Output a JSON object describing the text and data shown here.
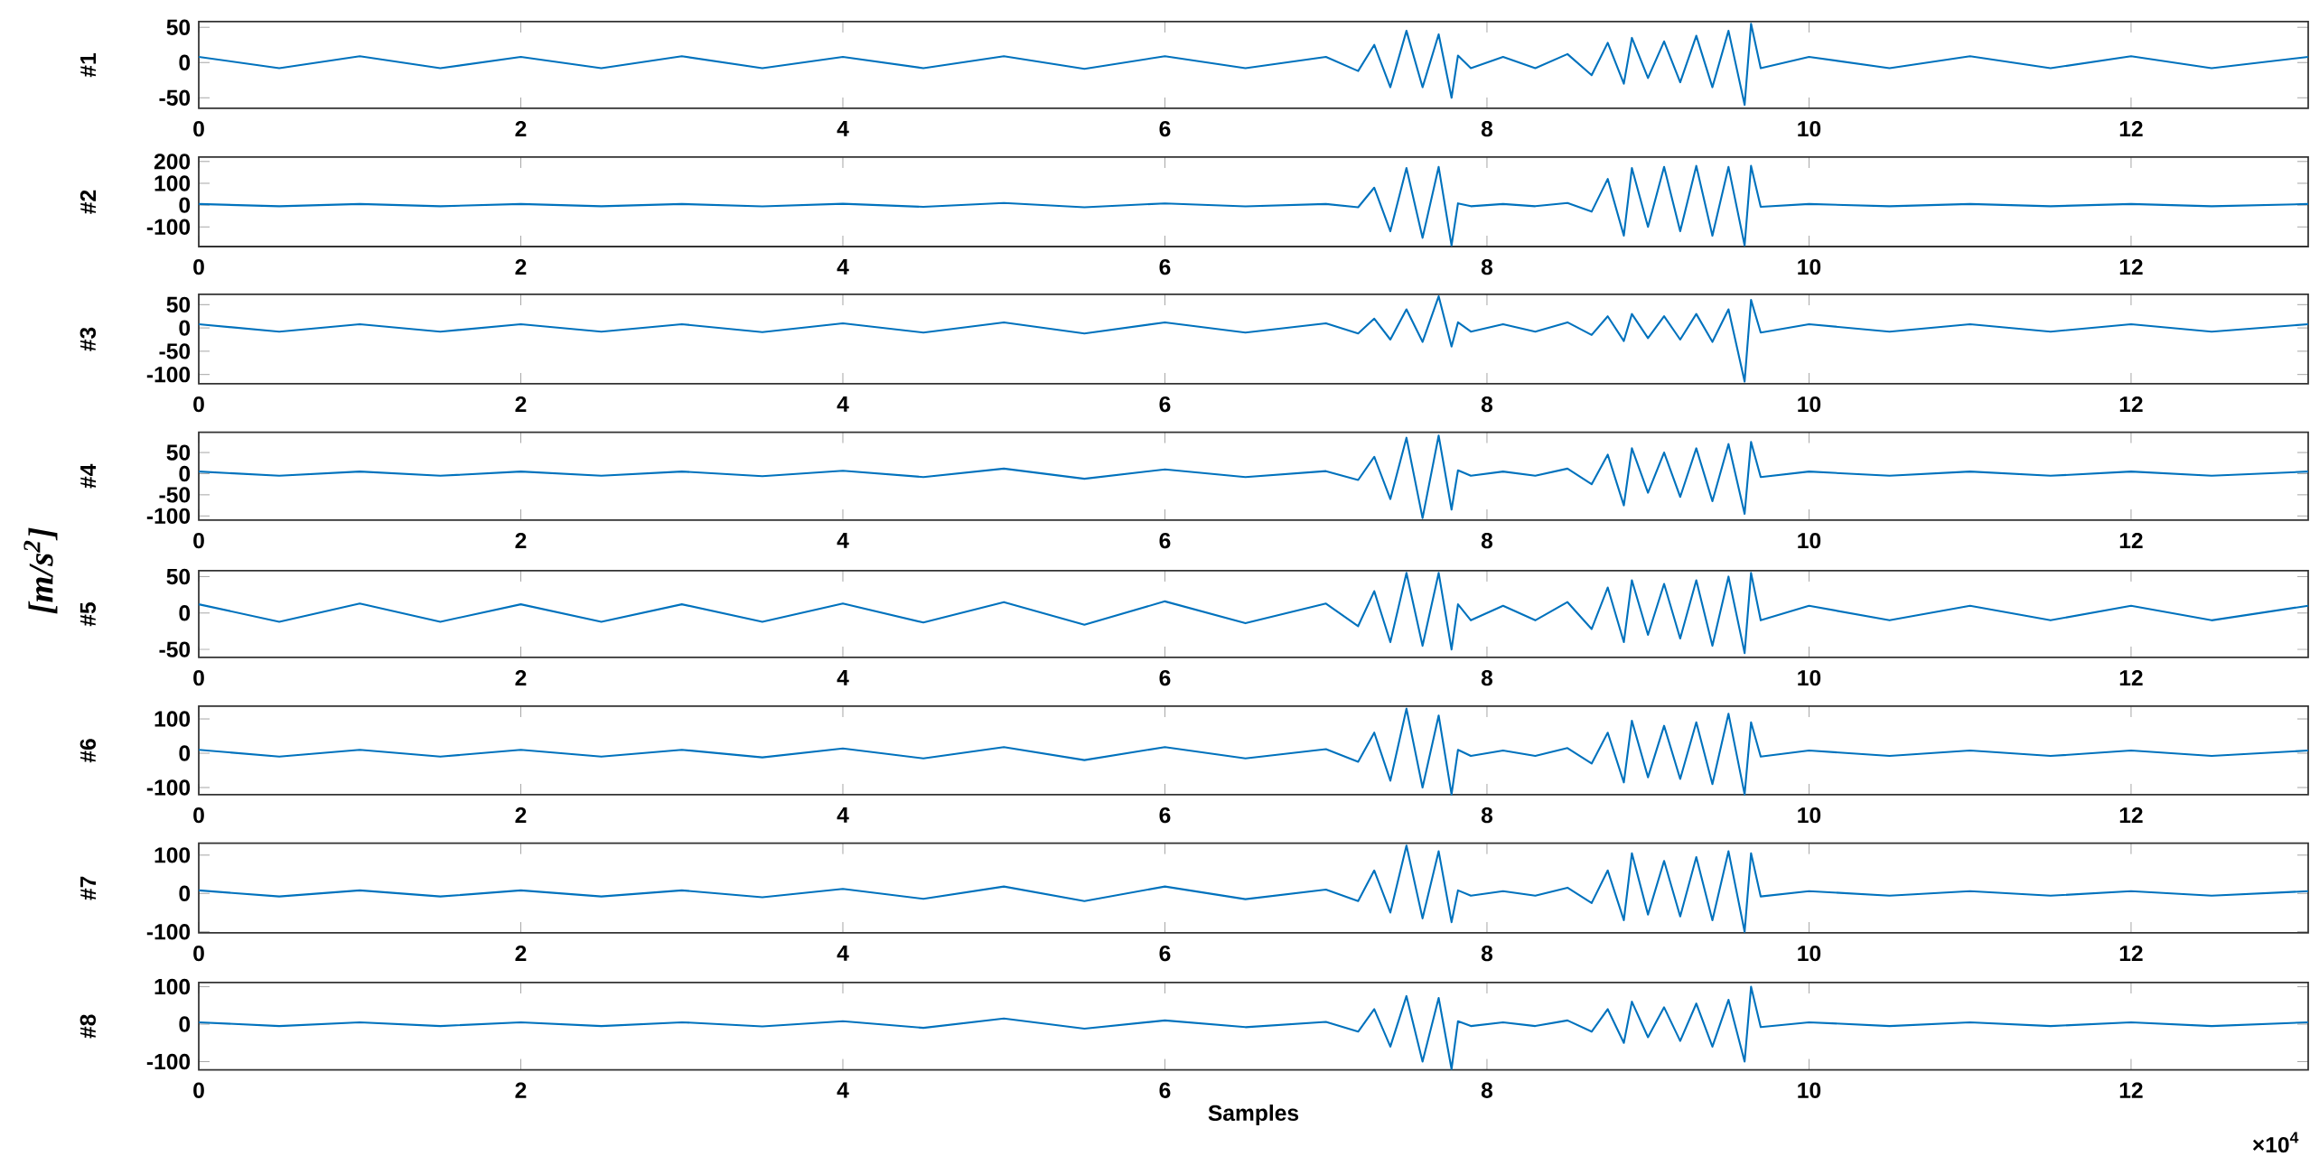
{
  "chart_data": [
    {
      "type": "line",
      "ylabel": "#1",
      "color": "#0072bd",
      "marker": "none",
      "line_style": "solid",
      "xlim": [
        0,
        13.1
      ],
      "ylim": [
        -65,
        58
      ],
      "xticks": [
        0,
        2,
        4,
        6,
        8,
        10,
        12
      ],
      "yticks": [
        -50,
        0,
        50
      ],
      "x": [
        0,
        0.5,
        1,
        1.5,
        2,
        2.5,
        3,
        3.5,
        4,
        4.5,
        5,
        5.5,
        6,
        6.5,
        7,
        7.2,
        7.3,
        7.4,
        7.5,
        7.6,
        7.7,
        7.78,
        7.82,
        7.9,
        8.1,
        8.3,
        8.5,
        8.65,
        8.75,
        8.85,
        8.9,
        9,
        9.1,
        9.2,
        9.3,
        9.4,
        9.5,
        9.6,
        9.64,
        9.7,
        10,
        10.5,
        11,
        11.5,
        12,
        12.5,
        13.1
      ],
      "values": [
        8,
        -8,
        9,
        -8,
        8,
        -8,
        9,
        -8,
        8,
        -8,
        9,
        -9,
        9,
        -8,
        8,
        -12,
        25,
        -35,
        45,
        -35,
        40,
        -50,
        10,
        -8,
        8,
        -8,
        12,
        -18,
        28,
        -30,
        35,
        -22,
        30,
        -28,
        38,
        -35,
        45,
        -60,
        55,
        -8,
        8,
        -8,
        9,
        -8,
        9,
        -8,
        8
      ]
    },
    {
      "type": "line",
      "ylabel": "#2",
      "color": "#0072bd",
      "marker": "none",
      "line_style": "solid",
      "xlim": [
        0,
        13.1
      ],
      "ylim": [
        -190,
        220
      ],
      "xticks": [
        0,
        2,
        4,
        6,
        8,
        10,
        12
      ],
      "yticks": [
        -100,
        0,
        100,
        200
      ],
      "x": [
        0,
        0.5,
        1,
        1.5,
        2,
        2.5,
        3,
        3.5,
        4,
        4.5,
        5,
        5.5,
        6,
        6.5,
        7,
        7.2,
        7.3,
        7.4,
        7.5,
        7.6,
        7.7,
        7.78,
        7.82,
        7.9,
        8.1,
        8.3,
        8.5,
        8.65,
        8.75,
        8.85,
        8.9,
        9,
        9.1,
        9.2,
        9.3,
        9.4,
        9.5,
        9.6,
        9.64,
        9.7,
        10,
        10.5,
        11,
        11.5,
        12,
        12.5,
        13.1
      ],
      "values": [
        5,
        -5,
        5,
        -5,
        5,
        -5,
        5,
        -6,
        6,
        -8,
        10,
        -10,
        8,
        -6,
        5,
        -10,
        80,
        -120,
        170,
        -150,
        175,
        -185,
        8,
        -5,
        5,
        -5,
        10,
        -30,
        120,
        -140,
        170,
        -100,
        175,
        -120,
        180,
        -140,
        175,
        -185,
        180,
        -8,
        5,
        -5,
        5,
        -5,
        5,
        -5,
        5
      ]
    },
    {
      "type": "line",
      "ylabel": "#3",
      "color": "#0072bd",
      "marker": "none",
      "line_style": "solid",
      "xlim": [
        0,
        13.1
      ],
      "ylim": [
        -120,
        72
      ],
      "xticks": [
        0,
        2,
        4,
        6,
        8,
        10,
        12
      ],
      "yticks": [
        -100,
        -50,
        0,
        50
      ],
      "x": [
        0,
        0.5,
        1,
        1.5,
        2,
        2.5,
        3,
        3.5,
        4,
        4.5,
        5,
        5.5,
        6,
        6.5,
        7,
        7.2,
        7.3,
        7.4,
        7.5,
        7.6,
        7.7,
        7.78,
        7.82,
        7.9,
        8.1,
        8.3,
        8.5,
        8.65,
        8.75,
        8.85,
        8.9,
        9,
        9.1,
        9.2,
        9.3,
        9.4,
        9.5,
        9.6,
        9.64,
        9.7,
        10,
        10.5,
        11,
        11.5,
        12,
        12.5,
        13.1
      ],
      "values": [
        8,
        -8,
        8,
        -8,
        8,
        -8,
        8,
        -9,
        10,
        -10,
        12,
        -12,
        12,
        -10,
        10,
        -12,
        20,
        -25,
        40,
        -30,
        68,
        -40,
        12,
        -8,
        8,
        -8,
        12,
        -15,
        25,
        -28,
        30,
        -22,
        25,
        -25,
        30,
        -30,
        40,
        -115,
        60,
        -10,
        8,
        -8,
        8,
        -8,
        8,
        -8,
        8
      ]
    },
    {
      "type": "line",
      "ylabel": "#4",
      "color": "#0072bd",
      "marker": "none",
      "line_style": "solid",
      "xlim": [
        0,
        13.1
      ],
      "ylim": [
        -110,
        98
      ],
      "xticks": [
        0,
        2,
        4,
        6,
        8,
        10,
        12
      ],
      "yticks": [
        -100,
        -50,
        0,
        50
      ],
      "x": [
        0,
        0.5,
        1,
        1.5,
        2,
        2.5,
        3,
        3.5,
        4,
        4.5,
        5,
        5.5,
        6,
        6.5,
        7,
        7.2,
        7.3,
        7.4,
        7.5,
        7.6,
        7.7,
        7.78,
        7.82,
        7.9,
        8.1,
        8.3,
        8.5,
        8.65,
        8.75,
        8.85,
        8.9,
        9,
        9.1,
        9.2,
        9.3,
        9.4,
        9.5,
        9.6,
        9.64,
        9.7,
        10,
        10.5,
        11,
        11.5,
        12,
        12.5,
        13.1
      ],
      "values": [
        5,
        -5,
        5,
        -5,
        5,
        -5,
        5,
        -6,
        7,
        -8,
        12,
        -12,
        10,
        -8,
        6,
        -15,
        40,
        -60,
        85,
        -105,
        90,
        -85,
        8,
        -5,
        5,
        -5,
        12,
        -25,
        45,
        -75,
        60,
        -45,
        50,
        -55,
        60,
        -65,
        70,
        -95,
        75,
        -8,
        5,
        -5,
        5,
        -5,
        5,
        -5,
        5
      ]
    },
    {
      "type": "line",
      "ylabel": "#5",
      "color": "#0072bd",
      "marker": "none",
      "line_style": "solid",
      "xlim": [
        0,
        13.1
      ],
      "ylim": [
        -61,
        58
      ],
      "xticks": [
        0,
        2,
        4,
        6,
        8,
        10,
        12
      ],
      "yticks": [
        -50,
        0,
        50
      ],
      "annotations": [
        "[m/s$^{2}$]"
      ],
      "x": [
        0,
        0.5,
        1,
        1.5,
        2,
        2.5,
        3,
        3.5,
        4,
        4.5,
        5,
        5.5,
        6,
        6.5,
        7,
        7.2,
        7.3,
        7.4,
        7.5,
        7.6,
        7.7,
        7.78,
        7.82,
        7.9,
        8.1,
        8.3,
        8.5,
        8.65,
        8.75,
        8.85,
        8.9,
        9,
        9.1,
        9.2,
        9.3,
        9.4,
        9.5,
        9.6,
        9.64,
        9.7,
        10,
        10.5,
        11,
        11.5,
        12,
        12.5,
        13.1
      ],
      "values": [
        12,
        -12,
        13,
        -12,
        12,
        -12,
        12,
        -12,
        13,
        -13,
        15,
        -16,
        16,
        -14,
        13,
        -18,
        30,
        -40,
        55,
        -45,
        55,
        -50,
        12,
        -10,
        10,
        -10,
        15,
        -22,
        35,
        -40,
        45,
        -30,
        40,
        -35,
        45,
        -45,
        50,
        -55,
        55,
        -10,
        10,
        -10,
        10,
        -10,
        10,
        -10,
        10
      ]
    },
    {
      "type": "line",
      "ylabel": "#6",
      "color": "#0072bd",
      "marker": "none",
      "line_style": "solid",
      "xlim": [
        0,
        13.1
      ],
      "ylim": [
        -121,
        137
      ],
      "xticks": [
        0,
        2,
        4,
        6,
        8,
        10,
        12
      ],
      "yticks": [
        -100,
        0,
        100
      ],
      "x": [
        0,
        0.5,
        1,
        1.5,
        2,
        2.5,
        3,
        3.5,
        4,
        4.5,
        5,
        5.5,
        6,
        6.5,
        7,
        7.2,
        7.3,
        7.4,
        7.5,
        7.6,
        7.7,
        7.78,
        7.82,
        7.9,
        8.1,
        8.3,
        8.5,
        8.65,
        8.75,
        8.85,
        8.9,
        9,
        9.1,
        9.2,
        9.3,
        9.4,
        9.5,
        9.6,
        9.64,
        9.7,
        10,
        10.5,
        11,
        11.5,
        12,
        12.5,
        13.1
      ],
      "values": [
        10,
        -10,
        10,
        -10,
        10,
        -10,
        10,
        -12,
        14,
        -15,
        18,
        -20,
        18,
        -15,
        12,
        -25,
        60,
        -80,
        130,
        -100,
        110,
        -120,
        10,
        -8,
        8,
        -8,
        15,
        -30,
        60,
        -85,
        95,
        -70,
        80,
        -75,
        90,
        -90,
        115,
        -120,
        90,
        -10,
        8,
        -8,
        8,
        -8,
        8,
        -8,
        8
      ]
    },
    {
      "type": "line",
      "ylabel": "#7",
      "color": "#0072bd",
      "marker": "none",
      "line_style": "solid",
      "xlim": [
        0,
        13.1
      ],
      "ylim": [
        -103,
        131
      ],
      "xticks": [
        0,
        2,
        4,
        6,
        8,
        10,
        12
      ],
      "yticks": [
        -100,
        0,
        100
      ],
      "x": [
        0,
        0.5,
        1,
        1.5,
        2,
        2.5,
        3,
        3.5,
        4,
        4.5,
        5,
        5.5,
        6,
        6.5,
        7,
        7.2,
        7.3,
        7.4,
        7.5,
        7.6,
        7.7,
        7.78,
        7.82,
        7.9,
        8.1,
        8.3,
        8.5,
        8.65,
        8.75,
        8.85,
        8.9,
        9,
        9.1,
        9.2,
        9.3,
        9.4,
        9.5,
        9.6,
        9.64,
        9.7,
        10,
        10.5,
        11,
        11.5,
        12,
        12.5,
        13.1
      ],
      "values": [
        8,
        -8,
        8,
        -8,
        8,
        -8,
        8,
        -10,
        12,
        -14,
        18,
        -20,
        18,
        -15,
        10,
        -20,
        60,
        -50,
        125,
        -65,
        110,
        -75,
        8,
        -6,
        6,
        -6,
        15,
        -25,
        60,
        -70,
        105,
        -55,
        85,
        -60,
        95,
        -70,
        110,
        -100,
        105,
        -8,
        6,
        -6,
        6,
        -6,
        6,
        -6,
        6
      ]
    },
    {
      "type": "line",
      "ylabel": "#8",
      "xlabel": "Samples",
      "color": "#0072bd",
      "marker": "none",
      "line_style": "solid",
      "xlim": [
        0,
        13.1
      ],
      "ylim": [
        -122,
        111
      ],
      "xticks": [
        0,
        2,
        4,
        6,
        8,
        10,
        12
      ],
      "yticks": [
        -100,
        0,
        100
      ],
      "annotations": [
        "×10$^{4}$"
      ],
      "x": [
        0,
        0.5,
        1,
        1.5,
        2,
        2.5,
        3,
        3.5,
        4,
        4.5,
        5,
        5.5,
        6,
        6.5,
        7,
        7.2,
        7.3,
        7.4,
        7.5,
        7.6,
        7.7,
        7.78,
        7.82,
        7.9,
        8.1,
        8.3,
        8.5,
        8.65,
        8.75,
        8.85,
        8.9,
        9,
        9.1,
        9.2,
        9.3,
        9.4,
        9.5,
        9.6,
        9.64,
        9.7,
        10,
        10.5,
        11,
        11.5,
        12,
        12.5,
        13.1
      ],
      "values": [
        5,
        -5,
        5,
        -5,
        5,
        -5,
        5,
        -6,
        8,
        -10,
        15,
        -12,
        10,
        -8,
        6,
        -20,
        40,
        -60,
        75,
        -100,
        70,
        -120,
        8,
        -5,
        5,
        -5,
        10,
        -20,
        40,
        -50,
        60,
        -35,
        45,
        -45,
        55,
        -60,
        65,
        -100,
        100,
        -8,
        5,
        -5,
        5,
        -5,
        5,
        -5,
        5
      ]
    }
  ]
}
